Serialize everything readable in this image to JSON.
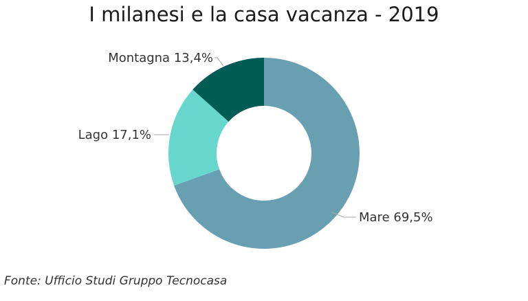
{
  "chart_data": {
    "type": "pie",
    "title": "I milanesi e la casa vacanza - 2019",
    "slices": [
      {
        "label": "Mare",
        "value": 69.5,
        "display": "69,5%",
        "color": "#68A0B2"
      },
      {
        "label": "Lago",
        "value": 17.1,
        "display": "17,1%",
        "color": "#67D6CC"
      },
      {
        "label": "Montagna",
        "value": 13.4,
        "display": "13,4%",
        "color": "#015C56"
      }
    ]
  },
  "source": "Fonte: Ufficio Studi Gruppo Tecnocasa"
}
